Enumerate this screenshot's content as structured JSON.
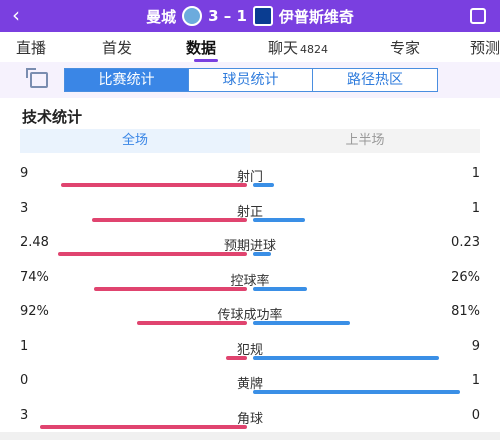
{
  "header": {
    "back_icon": "back-chevron-icon",
    "home_team": "曼城",
    "score": "3 – 1",
    "away_team": "伊普斯维奇",
    "colors": {
      "bar_bg": "#7a3fe0",
      "home_logo": "#6cabdd",
      "away_logo": "#0a3d91"
    }
  },
  "tabs": [
    {
      "label": "直播"
    },
    {
      "label": "首发"
    },
    {
      "label": "数据"
    },
    {
      "label": "聊天",
      "count": "4824"
    },
    {
      "label": "专家"
    },
    {
      "label": "预测"
    }
  ],
  "active_tab": 2,
  "subtabs": [
    "比赛统计",
    "球员统计",
    "路径热区"
  ],
  "section_title": "技术统计",
  "period": {
    "full": "全场",
    "first_half": "上半场"
  },
  "stats": [
    {
      "name": "射门",
      "home": "9",
      "away": "1",
      "home_share": 0.9,
      "away_share": 0.1
    },
    {
      "name": "射正",
      "home": "3",
      "away": "1",
      "home_share": 0.75,
      "away_share": 0.25
    },
    {
      "name": "预期进球",
      "home": "2.48",
      "away": "0.23",
      "home_share": 0.915,
      "away_share": 0.085
    },
    {
      "name": "控球率",
      "home": "74%",
      "away": "26%",
      "home_share": 0.74,
      "away_share": 0.26
    },
    {
      "name": "传球成功率",
      "home": "92%",
      "away": "81%",
      "home_share": 0.532,
      "away_share": 0.468
    },
    {
      "name": "犯规",
      "home": "1",
      "away": "9",
      "home_share": 0.1,
      "away_share": 0.9
    },
    {
      "name": "黄牌",
      "home": "0",
      "away": "1",
      "home_share": 0.0,
      "away_share": 1.0
    },
    {
      "name": "角球",
      "home": "3",
      "away": "0",
      "home_share": 1.0,
      "away_share": 0.0
    }
  ],
  "colors": {
    "home_bar": "#e0446f",
    "away_bar": "#3a8fe6",
    "accent": "#3a86e6"
  }
}
